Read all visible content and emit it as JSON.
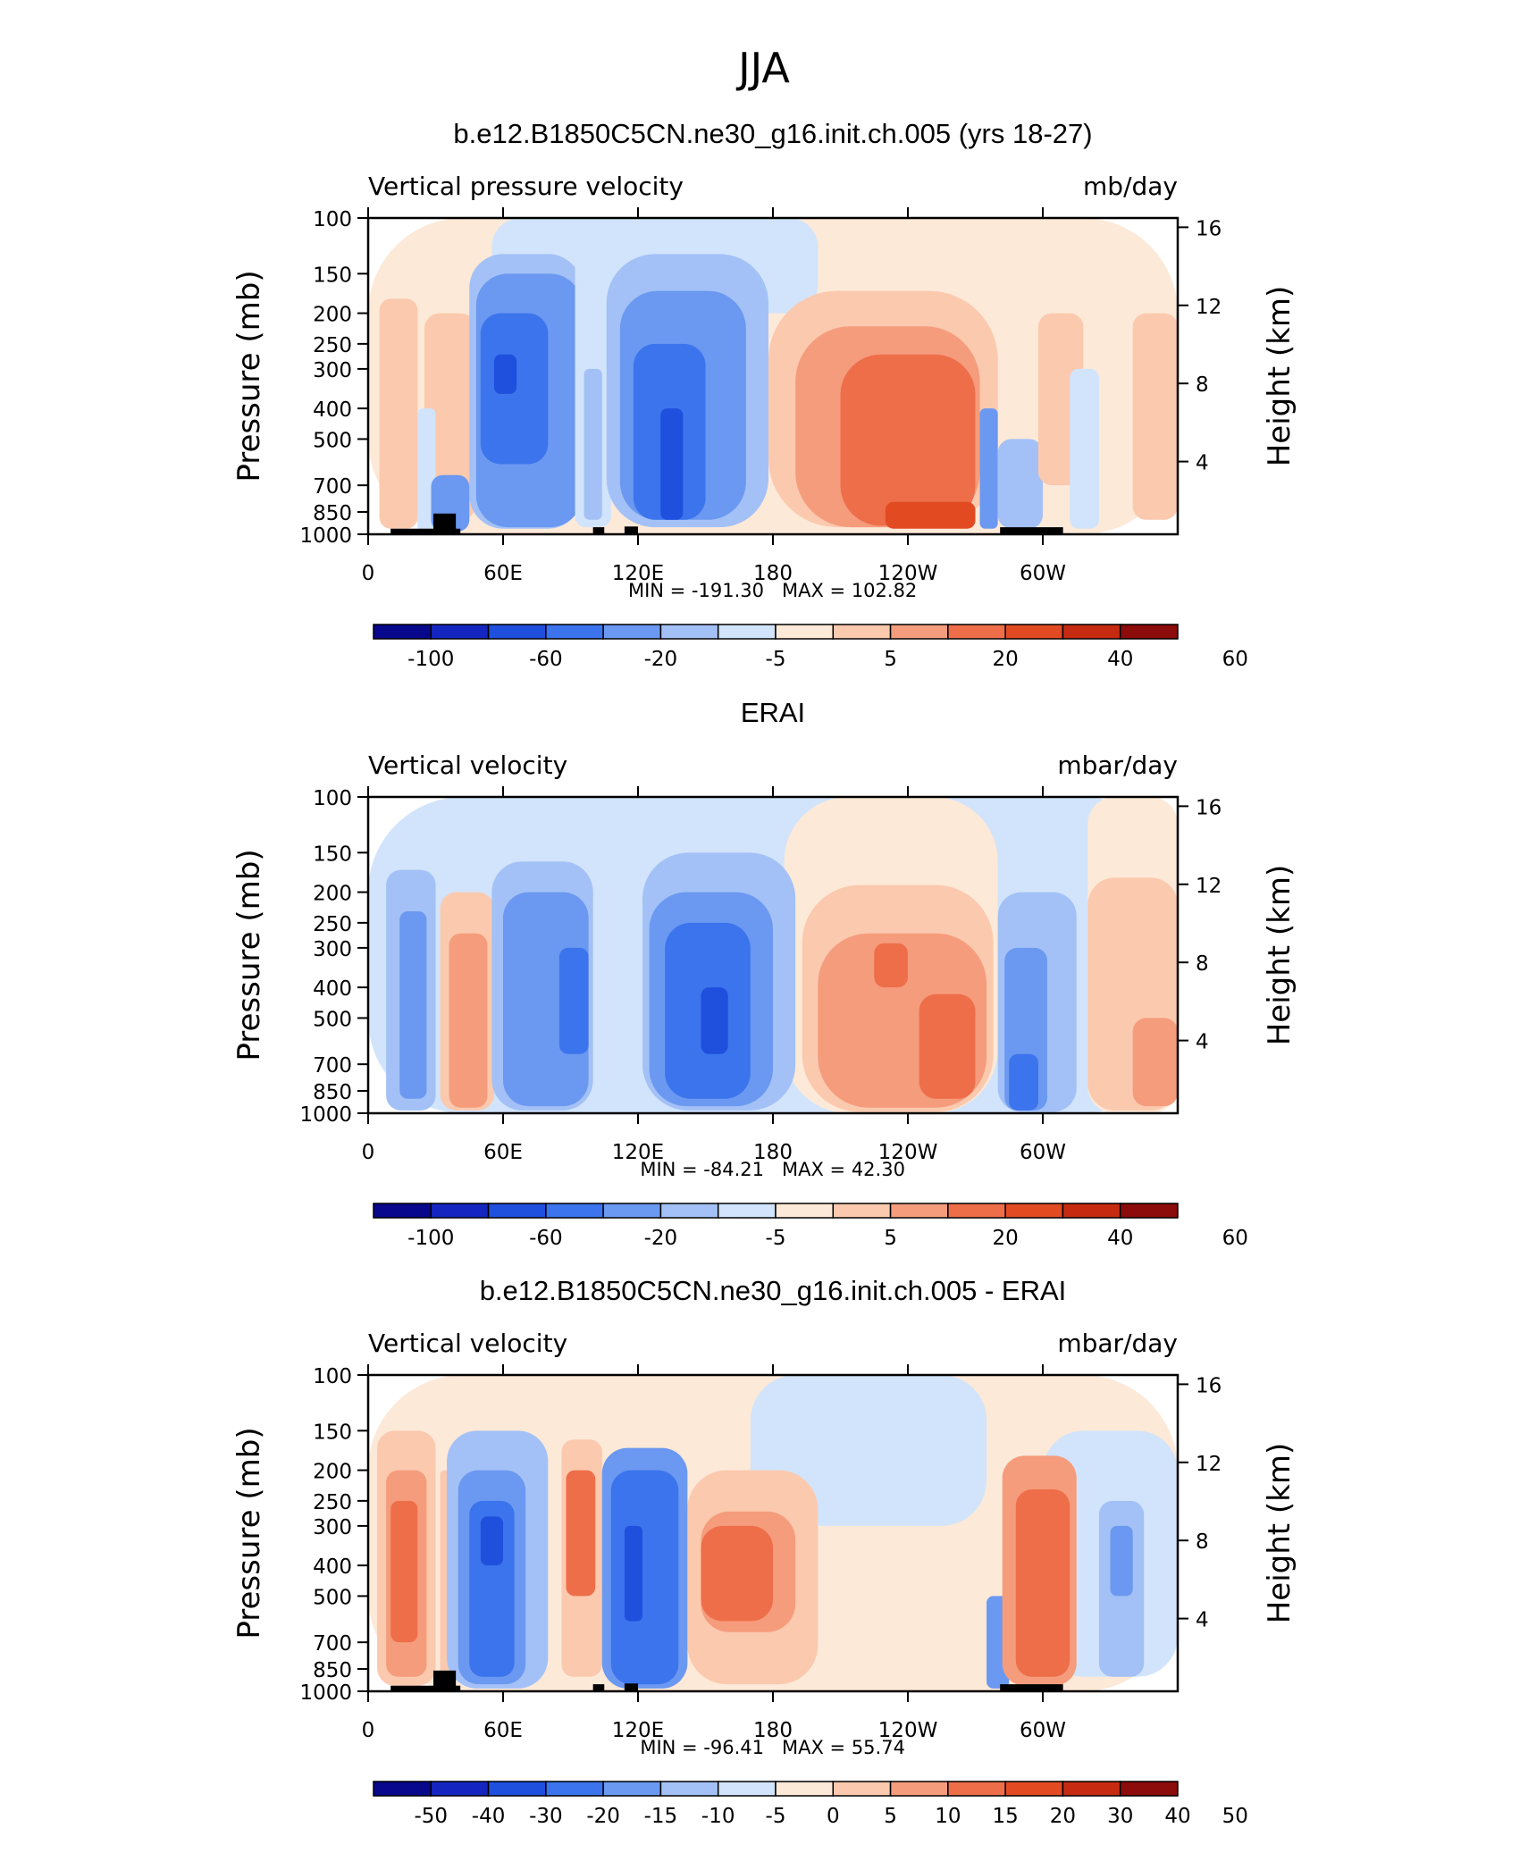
{
  "figure": {
    "title": "JJA",
    "ylabel_left": "Pressure (mb)",
    "ylabel_right": "Height (km)",
    "pressure_ticks": [
      100,
      150,
      200,
      250,
      300,
      400,
      500,
      700,
      850,
      1000
    ],
    "height_ticks": [
      16,
      12,
      8,
      4
    ],
    "x_ticks": [
      {
        "lon": 0,
        "label": "0"
      },
      {
        "lon": 60,
        "label": "60E"
      },
      {
        "lon": 120,
        "label": "120E"
      },
      {
        "lon": 180,
        "label": "180"
      },
      {
        "lon": 240,
        "label": "120W"
      },
      {
        "lon": 300,
        "label": "60W"
      }
    ],
    "xlim": [
      0,
      360
    ],
    "ylim": [
      1000,
      100
    ],
    "y_scale": "log-pressure",
    "colors_cool": [
      "#08088c",
      "#1526c0",
      "#1f4fdd",
      "#3b74ec",
      "#6b98f0",
      "#a3c1f6",
      "#d1e4fb"
    ],
    "colors_warm": [
      "#fde9d8",
      "#fbc9ae",
      "#f59c7c",
      "#ee6e4a",
      "#e24a22",
      "#c62b12",
      "#8c0b0b"
    ],
    "terrain_color": "#000000"
  },
  "chart_data": [
    {
      "type": "heatmap",
      "title": "b.e12.B1850C5CN.ne30_g16.init.ch.005 (yrs 18-27)",
      "left_label": "Vertical pressure velocity",
      "right_label": "mb/day",
      "min_label": "MIN = -191.30",
      "max_label": "MAX = 102.82",
      "colorbar_labels": [
        "-100",
        "-60",
        "-20",
        "-5",
        "5",
        "20",
        "40",
        "60"
      ],
      "regions": [
        {
          "lon": [
            0,
            360
          ],
          "p": [
            100,
            1000
          ],
          "level": 1
        },
        {
          "lon": [
            55,
            200
          ],
          "p": [
            100,
            200
          ],
          "level": -1
        },
        {
          "lon": [
            5,
            22
          ],
          "p": [
            180,
            960
          ],
          "level": 2
        },
        {
          "lon": [
            25,
            48
          ],
          "p": [
            200,
            900
          ],
          "level": 2
        },
        {
          "lon": [
            22,
            30
          ],
          "p": [
            400,
            980
          ],
          "level": -1
        },
        {
          "lon": [
            28,
            45
          ],
          "p": [
            650,
            980
          ],
          "level": -3
        },
        {
          "lon": [
            45,
            95
          ],
          "p": [
            130,
            960
          ],
          "level": -2
        },
        {
          "lon": [
            48,
            95
          ],
          "p": [
            150,
            950
          ],
          "level": -3
        },
        {
          "lon": [
            50,
            80
          ],
          "p": [
            200,
            600
          ],
          "level": -4
        },
        {
          "lon": [
            56,
            66
          ],
          "p": [
            270,
            360
          ],
          "level": -5
        },
        {
          "lon": [
            92,
            108
          ],
          "p": [
            130,
            950
          ],
          "level": -1
        },
        {
          "lon": [
            96,
            104
          ],
          "p": [
            300,
            900
          ],
          "level": -2
        },
        {
          "lon": [
            106,
            178
          ],
          "p": [
            130,
            950
          ],
          "level": -2
        },
        {
          "lon": [
            112,
            168
          ],
          "p": [
            170,
            900
          ],
          "level": -3
        },
        {
          "lon": [
            118,
            150
          ],
          "p": [
            250,
            900
          ],
          "level": -4
        },
        {
          "lon": [
            130,
            140
          ],
          "p": [
            400,
            900
          ],
          "level": -5
        },
        {
          "lon": [
            178,
            280
          ],
          "p": [
            170,
            950
          ],
          "level": 2
        },
        {
          "lon": [
            190,
            272
          ],
          "p": [
            220,
            950
          ],
          "level": 3
        },
        {
          "lon": [
            210,
            270
          ],
          "p": [
            270,
            940
          ],
          "level": 4
        },
        {
          "lon": [
            230,
            270
          ],
          "p": [
            790,
            960
          ],
          "level": 5
        },
        {
          "lon": [
            272,
            280
          ],
          "p": [
            400,
            960
          ],
          "level": -3
        },
        {
          "lon": [
            280,
            300
          ],
          "p": [
            500,
            960
          ],
          "level": -2
        },
        {
          "lon": [
            298,
            318
          ],
          "p": [
            200,
            700
          ],
          "level": 2
        },
        {
          "lon": [
            312,
            325
          ],
          "p": [
            300,
            960
          ],
          "level": -1
        },
        {
          "lon": [
            340,
            360
          ],
          "p": [
            200,
            900
          ],
          "level": 2
        }
      ],
      "terrain": [
        {
          "lon": [
            10,
            41
          ],
          "p": [
            960,
            1000
          ]
        },
        {
          "lon": [
            29,
            39
          ],
          "p": [
            860,
            1000
          ]
        },
        {
          "lon": [
            100,
            105
          ],
          "p": [
            950,
            1000
          ]
        },
        {
          "lon": [
            114,
            120
          ],
          "p": [
            945,
            1000
          ]
        },
        {
          "lon": [
            281,
            309
          ],
          "p": [
            950,
            1000
          ]
        }
      ]
    },
    {
      "type": "heatmap",
      "title": "ERAI",
      "left_label": "Vertical velocity",
      "right_label": "mbar/day",
      "min_label": "MIN = -84.21",
      "max_label": "MAX = 42.30",
      "colorbar_labels": [
        "-100",
        "-60",
        "-20",
        "-5",
        "5",
        "20",
        "40",
        "60"
      ],
      "regions": [
        {
          "lon": [
            0,
            360
          ],
          "p": [
            100,
            1000
          ],
          "level": -1
        },
        {
          "lon": [
            185,
            280
          ],
          "p": [
            100,
            1000
          ],
          "level": 1
        },
        {
          "lon": [
            320,
            360
          ],
          "p": [
            100,
            1000
          ],
          "level": 1
        },
        {
          "lon": [
            8,
            30
          ],
          "p": [
            170,
            980
          ],
          "level": -2
        },
        {
          "lon": [
            14,
            26
          ],
          "p": [
            230,
            900
          ],
          "level": -3
        },
        {
          "lon": [
            32,
            56
          ],
          "p": [
            200,
            980
          ],
          "level": 2
        },
        {
          "lon": [
            36,
            53
          ],
          "p": [
            270,
            960
          ],
          "level": 3
        },
        {
          "lon": [
            55,
            100
          ],
          "p": [
            160,
            980
          ],
          "level": -2
        },
        {
          "lon": [
            60,
            98
          ],
          "p": [
            200,
            950
          ],
          "level": -3
        },
        {
          "lon": [
            85,
            98
          ],
          "p": [
            300,
            650
          ],
          "level": -4
        },
        {
          "lon": [
            122,
            190
          ],
          "p": [
            150,
            980
          ],
          "level": -2
        },
        {
          "lon": [
            125,
            180
          ],
          "p": [
            200,
            950
          ],
          "level": -3
        },
        {
          "lon": [
            132,
            170
          ],
          "p": [
            250,
            900
          ],
          "level": -4
        },
        {
          "lon": [
            148,
            160
          ],
          "p": [
            400,
            650
          ],
          "level": -5
        },
        {
          "lon": [
            193,
            278
          ],
          "p": [
            190,
            990
          ],
          "level": 2
        },
        {
          "lon": [
            200,
            275
          ],
          "p": [
            270,
            960
          ],
          "level": 3
        },
        {
          "lon": [
            225,
            240
          ],
          "p": [
            290,
            400
          ],
          "level": 4
        },
        {
          "lon": [
            245,
            270
          ],
          "p": [
            420,
            900
          ],
          "level": 4
        },
        {
          "lon": [
            280,
            315
          ],
          "p": [
            200,
            990
          ],
          "level": -2
        },
        {
          "lon": [
            283,
            302
          ],
          "p": [
            300,
            980
          ],
          "level": -3
        },
        {
          "lon": [
            285,
            298
          ],
          "p": [
            650,
            980
          ],
          "level": -4
        },
        {
          "lon": [
            320,
            360
          ],
          "p": [
            180,
            980
          ],
          "level": 2
        },
        {
          "lon": [
            340,
            360
          ],
          "p": [
            500,
            950
          ],
          "level": 3
        }
      ],
      "terrain": []
    },
    {
      "type": "heatmap",
      "title": "b.e12.B1850C5CN.ne30_g16.init.ch.005 - ERAI",
      "left_label": "Vertical velocity",
      "right_label": "mbar/day",
      "min_label": "MIN = -96.41",
      "max_label": "MAX = 55.74",
      "colorbar_labels": [
        "-50",
        "-40",
        "-30",
        "-20",
        "-15",
        "-10",
        "-5",
        "0",
        "5",
        "10",
        "15",
        "20",
        "30",
        "40",
        "50"
      ],
      "regions": [
        {
          "lon": [
            0,
            360
          ],
          "p": [
            100,
            1000
          ],
          "level": 1
        },
        {
          "lon": [
            170,
            275
          ],
          "p": [
            100,
            300
          ],
          "level": -1
        },
        {
          "lon": [
            300,
            360
          ],
          "p": [
            150,
            900
          ],
          "level": -1
        },
        {
          "lon": [
            4,
            30
          ],
          "p": [
            150,
            960
          ],
          "level": 2
        },
        {
          "lon": [
            8,
            26
          ],
          "p": [
            200,
            900
          ],
          "level": 3
        },
        {
          "lon": [
            10,
            22
          ],
          "p": [
            250,
            700
          ],
          "level": 4
        },
        {
          "lon": [
            32,
            38
          ],
          "p": [
            200,
            900
          ],
          "level": 2
        },
        {
          "lon": [
            35,
            80
          ],
          "p": [
            150,
            980
          ],
          "level": -2
        },
        {
          "lon": [
            40,
            70
          ],
          "p": [
            200,
            950
          ],
          "level": -3
        },
        {
          "lon": [
            45,
            65
          ],
          "p": [
            250,
            900
          ],
          "level": -4
        },
        {
          "lon": [
            50,
            60
          ],
          "p": [
            280,
            400
          ],
          "level": -5
        },
        {
          "lon": [
            86,
            104
          ],
          "p": [
            160,
            900
          ],
          "level": 2
        },
        {
          "lon": [
            88,
            101
          ],
          "p": [
            200,
            500
          ],
          "level": 4
        },
        {
          "lon": [
            104,
            142
          ],
          "p": [
            170,
            980
          ],
          "level": -3
        },
        {
          "lon": [
            108,
            138
          ],
          "p": [
            200,
            950
          ],
          "level": -4
        },
        {
          "lon": [
            114,
            122
          ],
          "p": [
            300,
            600
          ],
          "level": -5
        },
        {
          "lon": [
            142,
            200
          ],
          "p": [
            200,
            950
          ],
          "level": 2
        },
        {
          "lon": [
            148,
            190
          ],
          "p": [
            270,
            650
          ],
          "level": 3
        },
        {
          "lon": [
            148,
            180
          ],
          "p": [
            300,
            600
          ],
          "level": 4
        },
        {
          "lon": [
            275,
            285
          ],
          "p": [
            500,
            980
          ],
          "level": -3
        },
        {
          "lon": [
            282,
            315
          ],
          "p": [
            180,
            960
          ],
          "level": 3
        },
        {
          "lon": [
            288,
            312
          ],
          "p": [
            230,
            900
          ],
          "level": 4
        },
        {
          "lon": [
            325,
            345
          ],
          "p": [
            250,
            900
          ],
          "level": -2
        },
        {
          "lon": [
            330,
            340
          ],
          "p": [
            300,
            500
          ],
          "level": -3
        }
      ],
      "terrain": [
        {
          "lon": [
            10,
            41
          ],
          "p": [
            960,
            1000
          ]
        },
        {
          "lon": [
            29,
            39
          ],
          "p": [
            860,
            1000
          ]
        },
        {
          "lon": [
            100,
            105
          ],
          "p": [
            950,
            1000
          ]
        },
        {
          "lon": [
            114,
            120
          ],
          "p": [
            945,
            1000
          ]
        },
        {
          "lon": [
            281,
            309
          ],
          "p": [
            950,
            1000
          ]
        }
      ]
    }
  ]
}
